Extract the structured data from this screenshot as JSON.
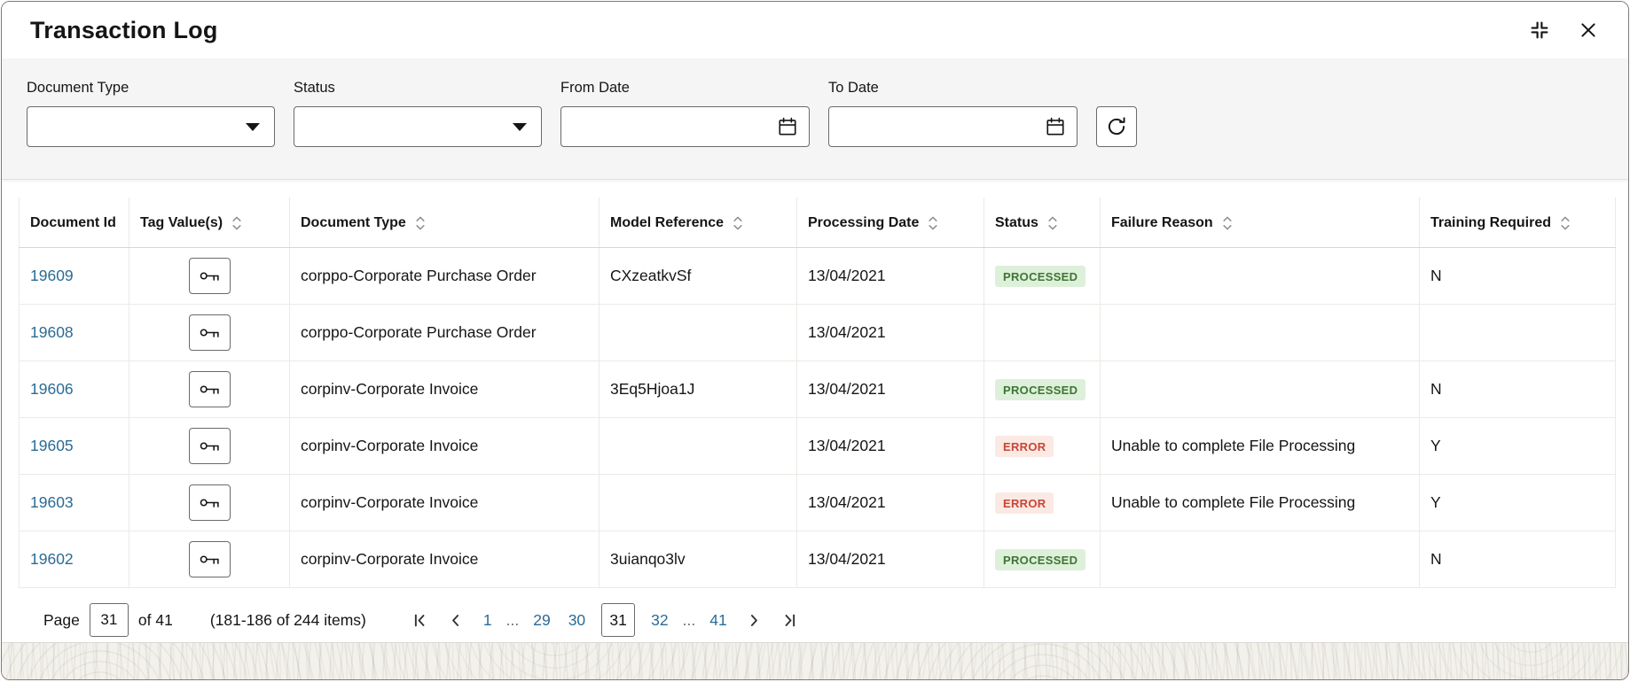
{
  "window": {
    "title": "Transaction Log"
  },
  "filters": {
    "document_type": {
      "label": "Document Type",
      "value": ""
    },
    "status": {
      "label": "Status",
      "value": ""
    },
    "from_date": {
      "label": "From Date",
      "value": ""
    },
    "to_date": {
      "label": "To Date",
      "value": ""
    }
  },
  "table": {
    "columns": [
      {
        "label": "Document Id",
        "sortable": false
      },
      {
        "label": "Tag Value(s)",
        "sortable": true
      },
      {
        "label": "Document Type",
        "sortable": true
      },
      {
        "label": "Model Reference",
        "sortable": true
      },
      {
        "label": "Processing Date",
        "sortable": true
      },
      {
        "label": "Status",
        "sortable": true
      },
      {
        "label": "Failure Reason",
        "sortable": true
      },
      {
        "label": "Training Required",
        "sortable": true
      }
    ],
    "rows": [
      {
        "document_id": "19609",
        "document_type": "corppo-Corporate Purchase Order",
        "model_reference": "CXzeatkvSf",
        "processing_date": "13/04/2021",
        "status": "PROCESSED",
        "failure_reason": "",
        "training_required": "N"
      },
      {
        "document_id": "19608",
        "document_type": "corppo-Corporate Purchase Order",
        "model_reference": "",
        "processing_date": "13/04/2021",
        "status": "",
        "failure_reason": "",
        "training_required": ""
      },
      {
        "document_id": "19606",
        "document_type": "corpinv-Corporate Invoice",
        "model_reference": "3Eq5Hjoa1J",
        "processing_date": "13/04/2021",
        "status": "PROCESSED",
        "failure_reason": "",
        "training_required": "N"
      },
      {
        "document_id": "19605",
        "document_type": "corpinv-Corporate Invoice",
        "model_reference": "",
        "processing_date": "13/04/2021",
        "status": "ERROR",
        "failure_reason": "Unable to complete File Processing",
        "training_required": "Y"
      },
      {
        "document_id": "19603",
        "document_type": "corpinv-Corporate Invoice",
        "model_reference": "",
        "processing_date": "13/04/2021",
        "status": "ERROR",
        "failure_reason": "Unable to complete File Processing",
        "training_required": "Y"
      },
      {
        "document_id": "19602",
        "document_type": "corpinv-Corporate Invoice",
        "model_reference": "3uianqo3lv",
        "processing_date": "13/04/2021",
        "status": "PROCESSED",
        "failure_reason": "",
        "training_required": "N"
      }
    ]
  },
  "pagination": {
    "page_label": "Page",
    "current_page": "31",
    "of_label": "of 41",
    "items_summary": "(181-186 of 244 items)",
    "pages": [
      "1",
      "...",
      "29",
      "30",
      "31",
      "32",
      "...",
      "41"
    ]
  },
  "colors": {
    "link": "#2a6b95",
    "filter_bar_bg": "#f5f5f5",
    "status_processed_bg": "#ddf0da",
    "status_processed_text": "#3f7534",
    "status_error_bg": "#fbe9e4",
    "status_error_text": "#c74634"
  }
}
